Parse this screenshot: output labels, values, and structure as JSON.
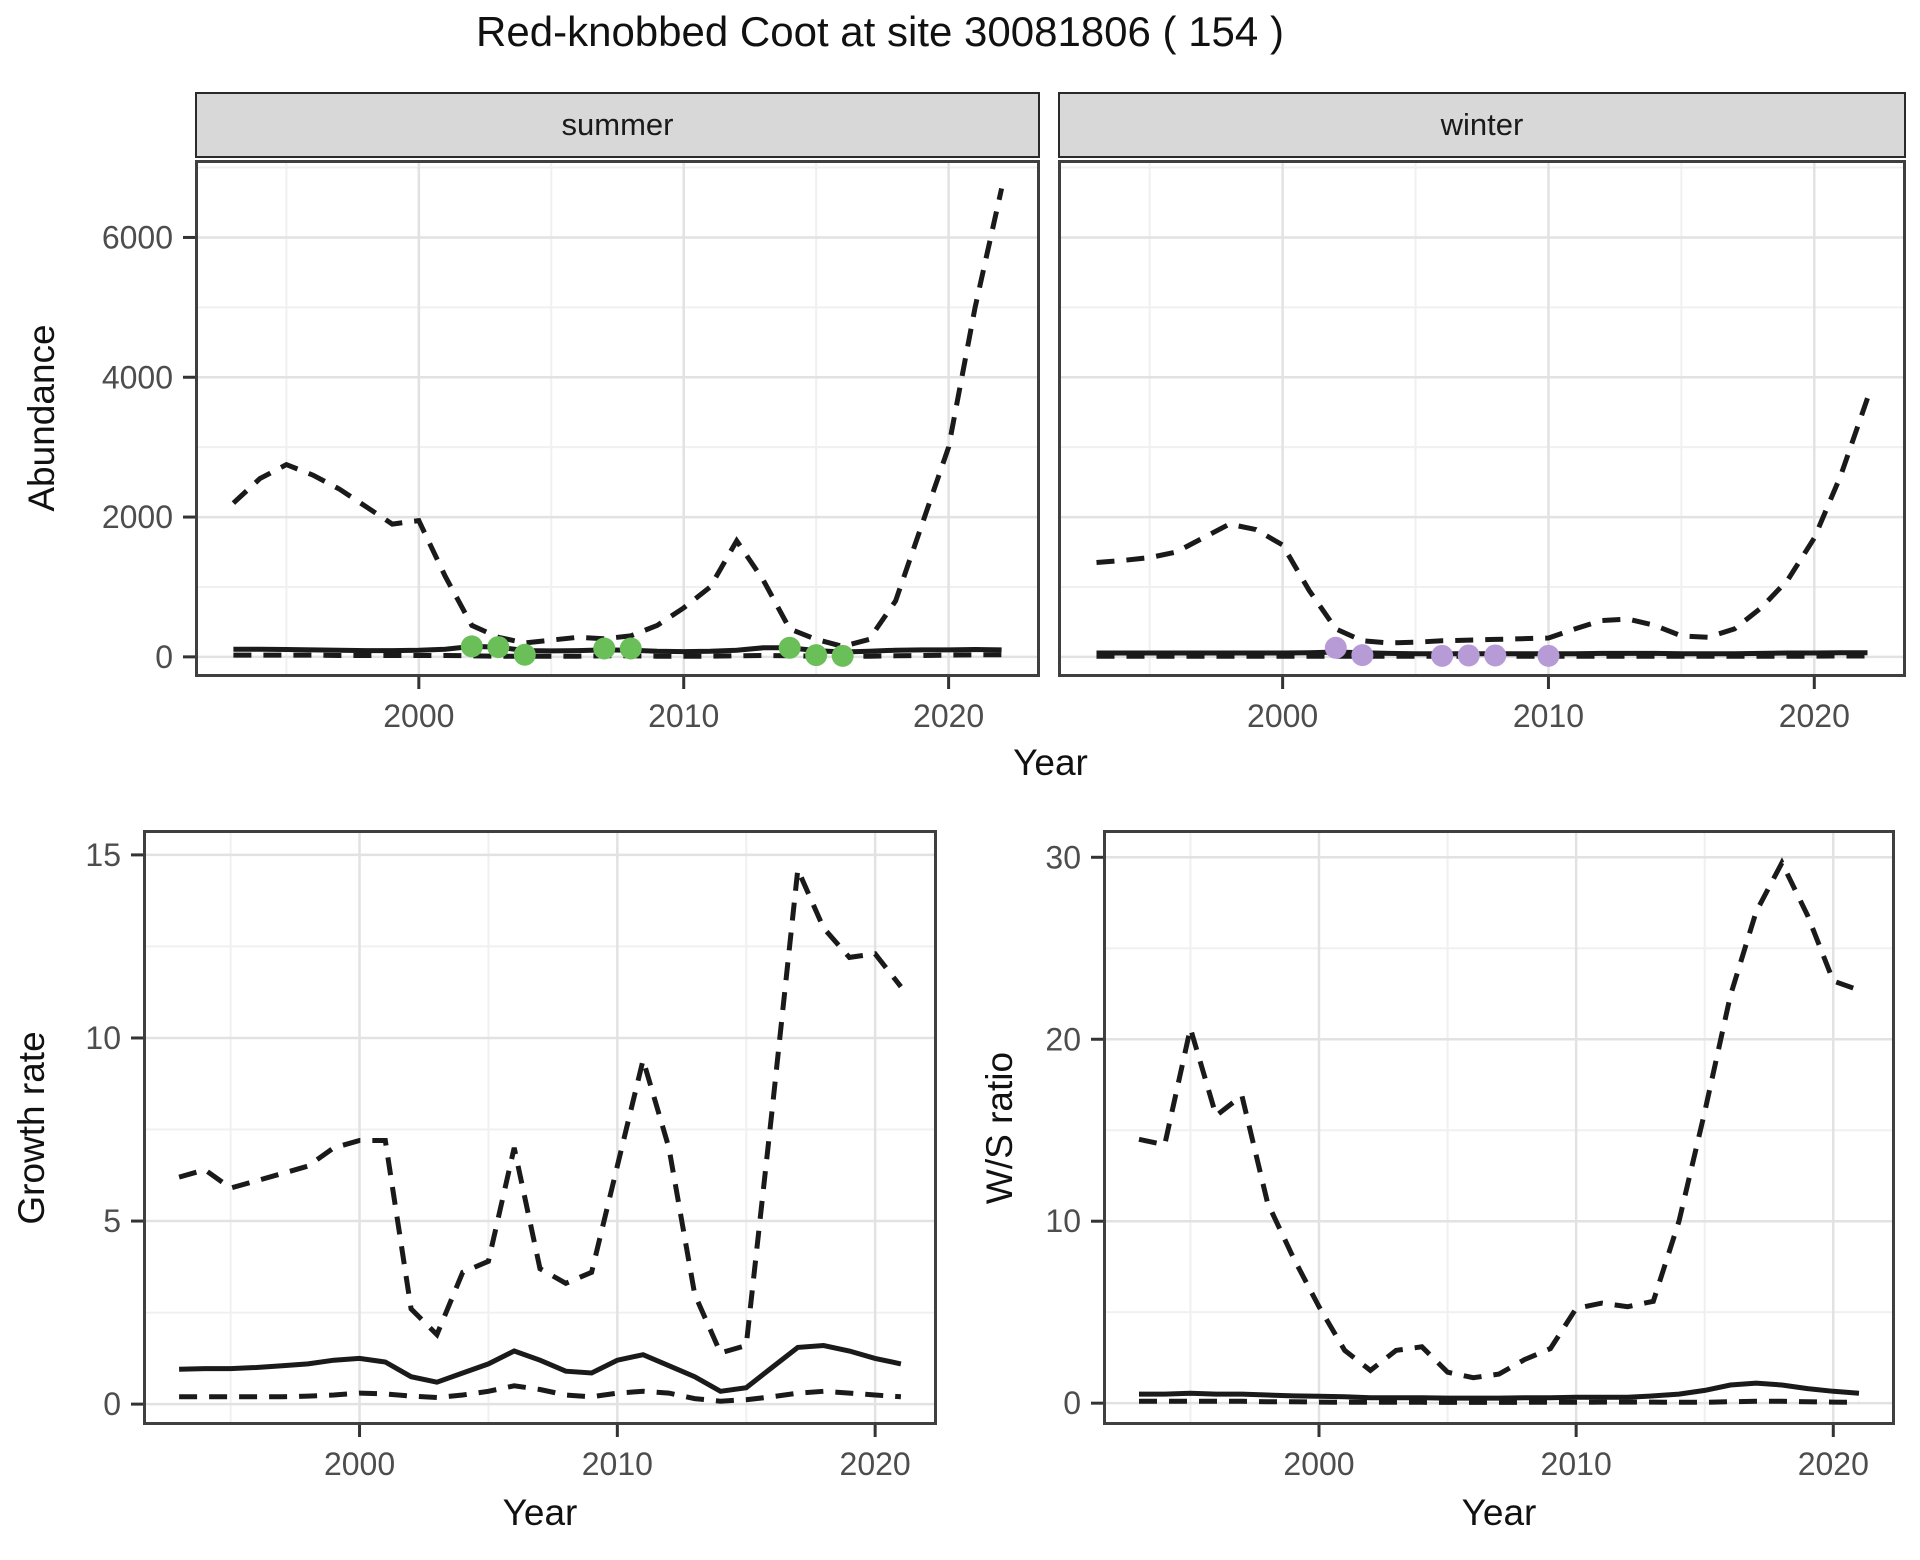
{
  "title": "Red-knobbed Coot at site 30081806 ( 154 )",
  "facets": {
    "summer": "summer",
    "winter": "winter"
  },
  "axis_titles": {
    "top_x": "Year",
    "top_y": "Abundance",
    "bottom_left_x": "Year",
    "bottom_left_y": "Growth rate",
    "bottom_right_x": "Year",
    "bottom_right_y": "W/S ratio"
  },
  "colors": {
    "line": "#1a1a1a",
    "summer_points": "#6abf59",
    "winter_points": "#b79bd6",
    "strip_bg": "#d8d8d8",
    "panel_border": "#3f3f3f",
    "grid_major": "#e2e2e2",
    "grid_minor": "#f0f0f0",
    "tick_text": "#4d4d4d",
    "tick_mark": "#333333"
  },
  "chart_data": [
    {
      "id": "summer-abundance",
      "type": "line",
      "facet_label": "summer",
      "xlabel": "Year",
      "ylabel": "Abundance",
      "xlim": [
        1991.55,
        2023.45
      ],
      "ylim": [
        -288,
        7108
      ],
      "xticks": [
        2000,
        2010,
        2020
      ],
      "xticks_minor": [
        1995,
        2005,
        2015
      ],
      "yticks": [
        0,
        2000,
        4000,
        6000
      ],
      "yticks_minor": [
        1000,
        3000,
        5000,
        7000
      ],
      "x": [
        1993,
        1994,
        1995,
        1996,
        1997,
        1998,
        1999,
        2000,
        2001,
        2002,
        2003,
        2004,
        2005,
        2006,
        2007,
        2008,
        2009,
        2010,
        2011,
        2012,
        2013,
        2014,
        2015,
        2016,
        2017,
        2018,
        2019,
        2020,
        2021,
        2022
      ],
      "series": [
        {
          "name": "upper quantile",
          "style": "dashed",
          "values": [
            2200,
            2550,
            2750,
            2600,
            2400,
            2150,
            1900,
            1950,
            1150,
            450,
            280,
            200,
            240,
            280,
            260,
            300,
            450,
            700,
            1000,
            1660,
            1100,
            400,
            250,
            150,
            250,
            800,
            1900,
            3000,
            5000,
            6700
          ]
        },
        {
          "name": "median",
          "style": "solid",
          "values": [
            110,
            110,
            105,
            100,
            95,
            90,
            90,
            95,
            110,
            150,
            140,
            90,
            85,
            90,
            100,
            95,
            80,
            75,
            80,
            95,
            130,
            130,
            90,
            70,
            80,
            95,
            100,
            100,
            105,
            100
          ]
        },
        {
          "name": "lower quantile",
          "style": "dashed",
          "values": [
            25,
            25,
            25,
            25,
            20,
            20,
            20,
            20,
            20,
            15,
            10,
            10,
            10,
            10,
            15,
            15,
            10,
            10,
            10,
            15,
            20,
            15,
            10,
            5,
            10,
            15,
            20,
            25,
            30,
            30
          ]
        }
      ],
      "points": {
        "name": "observed summer counts",
        "color": "#6abf59",
        "x": [
          2002,
          2003,
          2004,
          2007,
          2008,
          2014,
          2015,
          2016
        ],
        "y": [
          150,
          140,
          30,
          120,
          120,
          130,
          25,
          15
        ]
      }
    },
    {
      "id": "winter-abundance",
      "type": "line",
      "facet_label": "winter",
      "xlabel": "Year",
      "ylabel": "Abundance",
      "xlim": [
        1991.55,
        2023.45
      ],
      "ylim": [
        -288,
        7108
      ],
      "xticks": [
        2000,
        2010,
        2020
      ],
      "xticks_minor": [
        1995,
        2005,
        2015
      ],
      "yticks": [],
      "yticks_minor": [
        1000,
        3000,
        5000,
        7000
      ],
      "ygrid": [
        0,
        2000,
        4000,
        6000
      ],
      "x": [
        1993,
        1994,
        1995,
        1996,
        1997,
        1998,
        1999,
        2000,
        2001,
        2002,
        2003,
        2004,
        2005,
        2006,
        2007,
        2008,
        2009,
        2010,
        2011,
        2012,
        2013,
        2014,
        2015,
        2016,
        2017,
        2018,
        2019,
        2020,
        2021,
        2022
      ],
      "series": [
        {
          "name": "upper quantile",
          "style": "dashed",
          "values": [
            1350,
            1380,
            1420,
            1500,
            1700,
            1900,
            1820,
            1600,
            950,
            400,
            230,
            200,
            210,
            230,
            240,
            250,
            260,
            270,
            400,
            520,
            540,
            450,
            300,
            280,
            400,
            700,
            1100,
            1700,
            2600,
            3700
          ]
        },
        {
          "name": "median",
          "style": "solid",
          "values": [
            55,
            55,
            55,
            55,
            55,
            55,
            55,
            55,
            60,
            70,
            60,
            50,
            45,
            45,
            45,
            45,
            45,
            45,
            45,
            50,
            50,
            50,
            45,
            45,
            45,
            50,
            55,
            55,
            60,
            60
          ]
        },
        {
          "name": "lower quantile",
          "style": "dashed",
          "values": [
            10,
            10,
            10,
            10,
            10,
            10,
            10,
            10,
            10,
            10,
            8,
            8,
            8,
            8,
            8,
            8,
            8,
            8,
            8,
            10,
            10,
            10,
            8,
            8,
            8,
            10,
            10,
            10,
            12,
            12
          ]
        }
      ],
      "points": {
        "name": "observed winter counts",
        "color": "#b79bd6",
        "x": [
          2002,
          2003,
          2006,
          2007,
          2008,
          2010
        ],
        "y": [
          130,
          25,
          15,
          20,
          20,
          15
        ]
      }
    },
    {
      "id": "growth-rate",
      "type": "line",
      "facet_label": "",
      "xlabel": "Year",
      "ylabel": "Growth rate",
      "xlim": [
        1991.6,
        2022.4
      ],
      "ylim": [
        -0.57,
        15.68
      ],
      "xticks": [
        2000,
        2010,
        2020
      ],
      "xticks_minor": [
        1995,
        2005,
        2015
      ],
      "yticks": [
        0,
        5,
        10,
        15
      ],
      "yticks_minor": [
        2.5,
        7.5,
        12.5
      ],
      "x": [
        1993,
        1994,
        1995,
        1996,
        1997,
        1998,
        1999,
        2000,
        2001,
        2002,
        2003,
        2004,
        2005,
        2006,
        2007,
        2008,
        2009,
        2010,
        2011,
        2012,
        2013,
        2014,
        2015,
        2016,
        2017,
        2018,
        2019,
        2020,
        2021
      ],
      "series": [
        {
          "name": "upper quantile",
          "style": "dashed",
          "values": [
            6.2,
            6.4,
            5.9,
            6.1,
            6.3,
            6.5,
            7.0,
            7.2,
            7.2,
            2.6,
            1.9,
            3.6,
            3.9,
            7.0,
            3.7,
            3.3,
            3.6,
            6.5,
            9.4,
            7.0,
            3.0,
            1.4,
            1.6,
            8.0,
            14.6,
            13.0,
            12.2,
            12.3,
            11.4
          ]
        },
        {
          "name": "median",
          "style": "solid",
          "values": [
            0.95,
            0.97,
            0.97,
            1.0,
            1.05,
            1.1,
            1.2,
            1.25,
            1.15,
            0.75,
            0.6,
            0.85,
            1.1,
            1.45,
            1.2,
            0.9,
            0.85,
            1.2,
            1.35,
            1.05,
            0.75,
            0.35,
            0.45,
            1.0,
            1.55,
            1.6,
            1.45,
            1.25,
            1.1
          ]
        },
        {
          "name": "lower quantile",
          "style": "dashed",
          "values": [
            0.2,
            0.2,
            0.2,
            0.2,
            0.2,
            0.22,
            0.25,
            0.3,
            0.28,
            0.22,
            0.18,
            0.25,
            0.35,
            0.5,
            0.4,
            0.25,
            0.2,
            0.3,
            0.35,
            0.3,
            0.15,
            0.08,
            0.12,
            0.2,
            0.3,
            0.35,
            0.3,
            0.25,
            0.2
          ]
        }
      ]
    },
    {
      "id": "ws-ratio",
      "type": "line",
      "facet_label": "",
      "xlabel": "Year",
      "ylabel": "W/S ratio",
      "xlim": [
        1991.6,
        2022.4
      ],
      "ylim": [
        -1.2,
        31.5
      ],
      "xticks": [
        2000,
        2010,
        2020
      ],
      "xticks_minor": [
        1995,
        2005,
        2015
      ],
      "yticks": [
        0,
        10,
        20,
        30
      ],
      "yticks_minor": [
        5,
        15,
        25
      ],
      "x": [
        1993,
        1994,
        1995,
        1996,
        1997,
        1998,
        1999,
        2000,
        2001,
        2002,
        2003,
        2004,
        2005,
        2006,
        2007,
        2008,
        2009,
        2010,
        2011,
        2012,
        2013,
        2014,
        2015,
        2016,
        2017,
        2018,
        2019,
        2020,
        2021
      ],
      "series": [
        {
          "name": "upper quantile",
          "style": "dashed",
          "values": [
            14.5,
            14.2,
            20.6,
            15.8,
            16.9,
            11.0,
            8.0,
            5.3,
            2.9,
            1.8,
            2.9,
            3.1,
            1.7,
            1.4,
            1.6,
            2.4,
            3.0,
            5.2,
            5.5,
            5.3,
            5.6,
            10.0,
            16.0,
            22.4,
            27.0,
            29.7,
            26.8,
            23.2,
            22.7
          ]
        },
        {
          "name": "median",
          "style": "solid",
          "values": [
            0.5,
            0.5,
            0.55,
            0.5,
            0.5,
            0.45,
            0.4,
            0.38,
            0.35,
            0.3,
            0.3,
            0.3,
            0.28,
            0.28,
            0.28,
            0.3,
            0.3,
            0.32,
            0.33,
            0.33,
            0.4,
            0.5,
            0.7,
            1.0,
            1.1,
            1.0,
            0.8,
            0.65,
            0.55
          ]
        },
        {
          "name": "lower quantile",
          "style": "dashed",
          "values": [
            0.1,
            0.1,
            0.1,
            0.1,
            0.1,
            0.08,
            0.08,
            0.06,
            0.05,
            0.05,
            0.05,
            0.05,
            0.04,
            0.04,
            0.04,
            0.05,
            0.05,
            0.05,
            0.06,
            0.06,
            0.06,
            0.05,
            0.05,
            0.08,
            0.1,
            0.1,
            0.08,
            0.06,
            0.05
          ]
        }
      ]
    }
  ]
}
